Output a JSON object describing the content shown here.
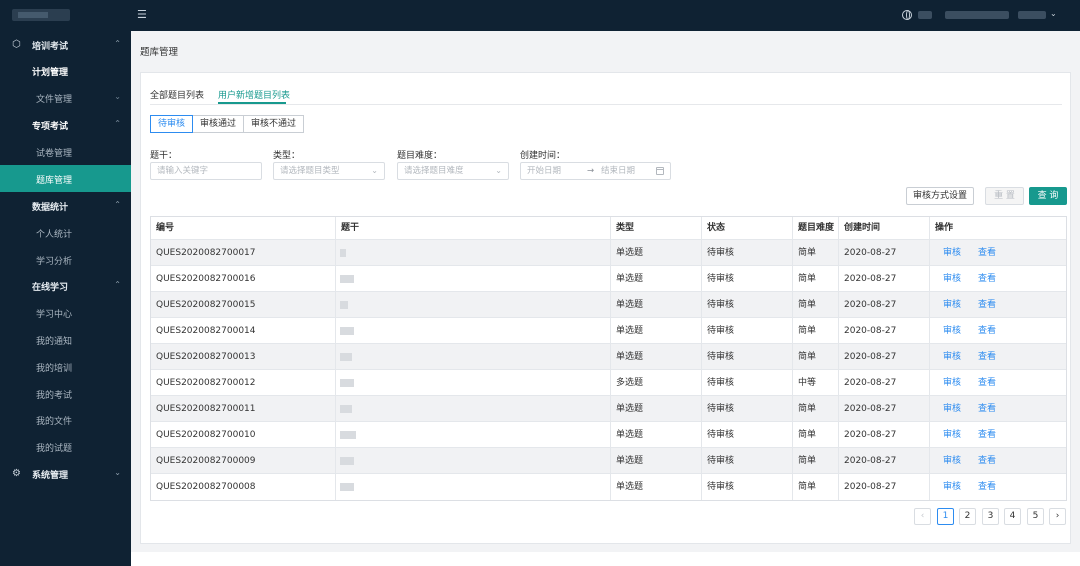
{
  "topbar": {
    "menu_icon": "menu-fold-icon",
    "globe_icon": "globe-icon",
    "chevron": "⌄"
  },
  "sidebar": {
    "groups": [
      {
        "label": "培训考试",
        "icon": "graduation-cap-icon",
        "chevron": "⌃"
      },
      {
        "label": "数据统计",
        "chevron": "⌃"
      },
      {
        "label": "在线学习",
        "chevron": "⌃"
      },
      {
        "label": "系统管理",
        "icon": "gear-icon",
        "chevron": "⌄"
      }
    ],
    "items": {
      "plan": "计划管理",
      "files": "文件管理",
      "special": "专项考试",
      "papers": "试卷管理",
      "bank": "题库管理",
      "personal": "个人统计",
      "analysis": "学习分析",
      "center": "学习中心",
      "notices": "我的通知",
      "trainings": "我的培训",
      "exams": "我的考试",
      "myfiles": "我的文件",
      "questions": "我的试题"
    }
  },
  "page": {
    "title": "题库管理"
  },
  "tabs": {
    "all": "全部题目列表",
    "new": "用户新增题目列表"
  },
  "status_filter": [
    "待审核",
    "审核通过",
    "审核不通过"
  ],
  "filters": {
    "stem_label": "题干：",
    "stem_placeholder": "请输入关键字",
    "type_label": "类型：",
    "type_placeholder": "请选择题目类型",
    "difficulty_label": "题目难度：",
    "difficulty_placeholder": "请选择题目难度",
    "created_label": "创建时间：",
    "start_placeholder": "开始日期",
    "arrow": "→",
    "end_placeholder": "结束日期"
  },
  "buttons": {
    "setting": "审核方式设置",
    "reset": "重 置",
    "query": "查 询"
  },
  "table": {
    "headers": [
      "编号",
      "题干",
      "类型",
      "状态",
      "题目难度",
      "创建时间",
      "操作"
    ],
    "rows": [
      {
        "id": "QUES2020082700017",
        "type": "单选题",
        "status": "待审核",
        "difficulty": "简单",
        "date": "2020-08-27",
        "review": "审核",
        "view": "查看"
      },
      {
        "id": "QUES2020082700016",
        "type": "单选题",
        "status": "待审核",
        "difficulty": "简单",
        "date": "2020-08-27",
        "review": "审核",
        "view": "查看"
      },
      {
        "id": "QUES2020082700015",
        "type": "单选题",
        "status": "待审核",
        "difficulty": "简单",
        "date": "2020-08-27",
        "review": "审核",
        "view": "查看"
      },
      {
        "id": "QUES2020082700014",
        "type": "单选题",
        "status": "待审核",
        "difficulty": "简单",
        "date": "2020-08-27",
        "review": "审核",
        "view": "查看"
      },
      {
        "id": "QUES2020082700013",
        "type": "单选题",
        "status": "待审核",
        "difficulty": "简单",
        "date": "2020-08-27",
        "review": "审核",
        "view": "查看"
      },
      {
        "id": "QUES2020082700012",
        "type": "多选题",
        "status": "待审核",
        "difficulty": "中等",
        "date": "2020-08-27",
        "review": "审核",
        "view": "查看"
      },
      {
        "id": "QUES2020082700011",
        "type": "单选题",
        "status": "待审核",
        "difficulty": "简单",
        "date": "2020-08-27",
        "review": "审核",
        "view": "查看"
      },
      {
        "id": "QUES2020082700010",
        "type": "单选题",
        "status": "待审核",
        "difficulty": "简单",
        "date": "2020-08-27",
        "review": "审核",
        "view": "查看"
      },
      {
        "id": "QUES2020082700009",
        "type": "单选题",
        "status": "待审核",
        "difficulty": "简单",
        "date": "2020-08-27",
        "review": "审核",
        "view": "查看"
      },
      {
        "id": "QUES2020082700008",
        "type": "单选题",
        "status": "待审核",
        "difficulty": "简单",
        "date": "2020-08-27",
        "review": "审核",
        "view": "查看"
      }
    ]
  },
  "pagination": {
    "prev": "‹",
    "pages": [
      "1",
      "2",
      "3",
      "4",
      "5"
    ],
    "current": "1",
    "next": "›"
  }
}
